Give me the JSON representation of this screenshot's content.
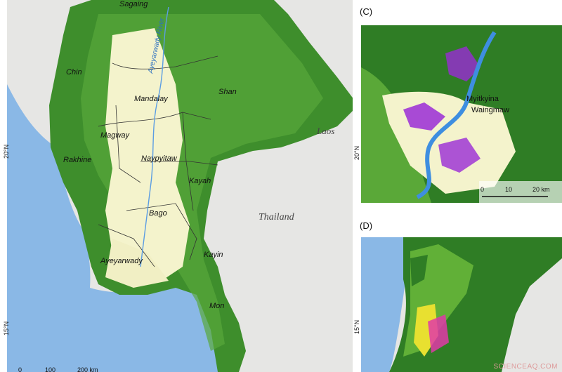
{
  "main_map": {
    "regions": [
      "Sagaing",
      "Chin",
      "Mandalay",
      "Shan",
      "Magway",
      "Rakhine",
      "Naypyitaw",
      "Kayah",
      "Bago",
      "Ayeyarwady",
      "Kayin",
      "Mon"
    ],
    "river": "Ayeyarwady River",
    "countries": [
      "Laos",
      "Thailand"
    ],
    "lat_labels": [
      "20°N",
      "15°N"
    ],
    "scale": [
      "0",
      "100",
      "200 km"
    ]
  },
  "inset_c": {
    "label": "(C)",
    "places": [
      "Myitkyina",
      "Waingmaw"
    ],
    "lat_label": "20°N",
    "scale": [
      "0",
      "10",
      "20 km"
    ]
  },
  "inset_d": {
    "label": "(D)",
    "lat_label": "15°N"
  },
  "watermark": "SCIENCEAQ.COM",
  "colors": {
    "sea": "#8ab8e6",
    "land_outside": "#e4e4e2",
    "forest_dark": "#2e7a24",
    "forest_light": "#5fb13b",
    "cropland": "#f4f3cc",
    "purple_change": "#9a2bd6",
    "river": "#3e8ee0",
    "magenta": "#e038a8",
    "yellow": "#e8e030"
  }
}
